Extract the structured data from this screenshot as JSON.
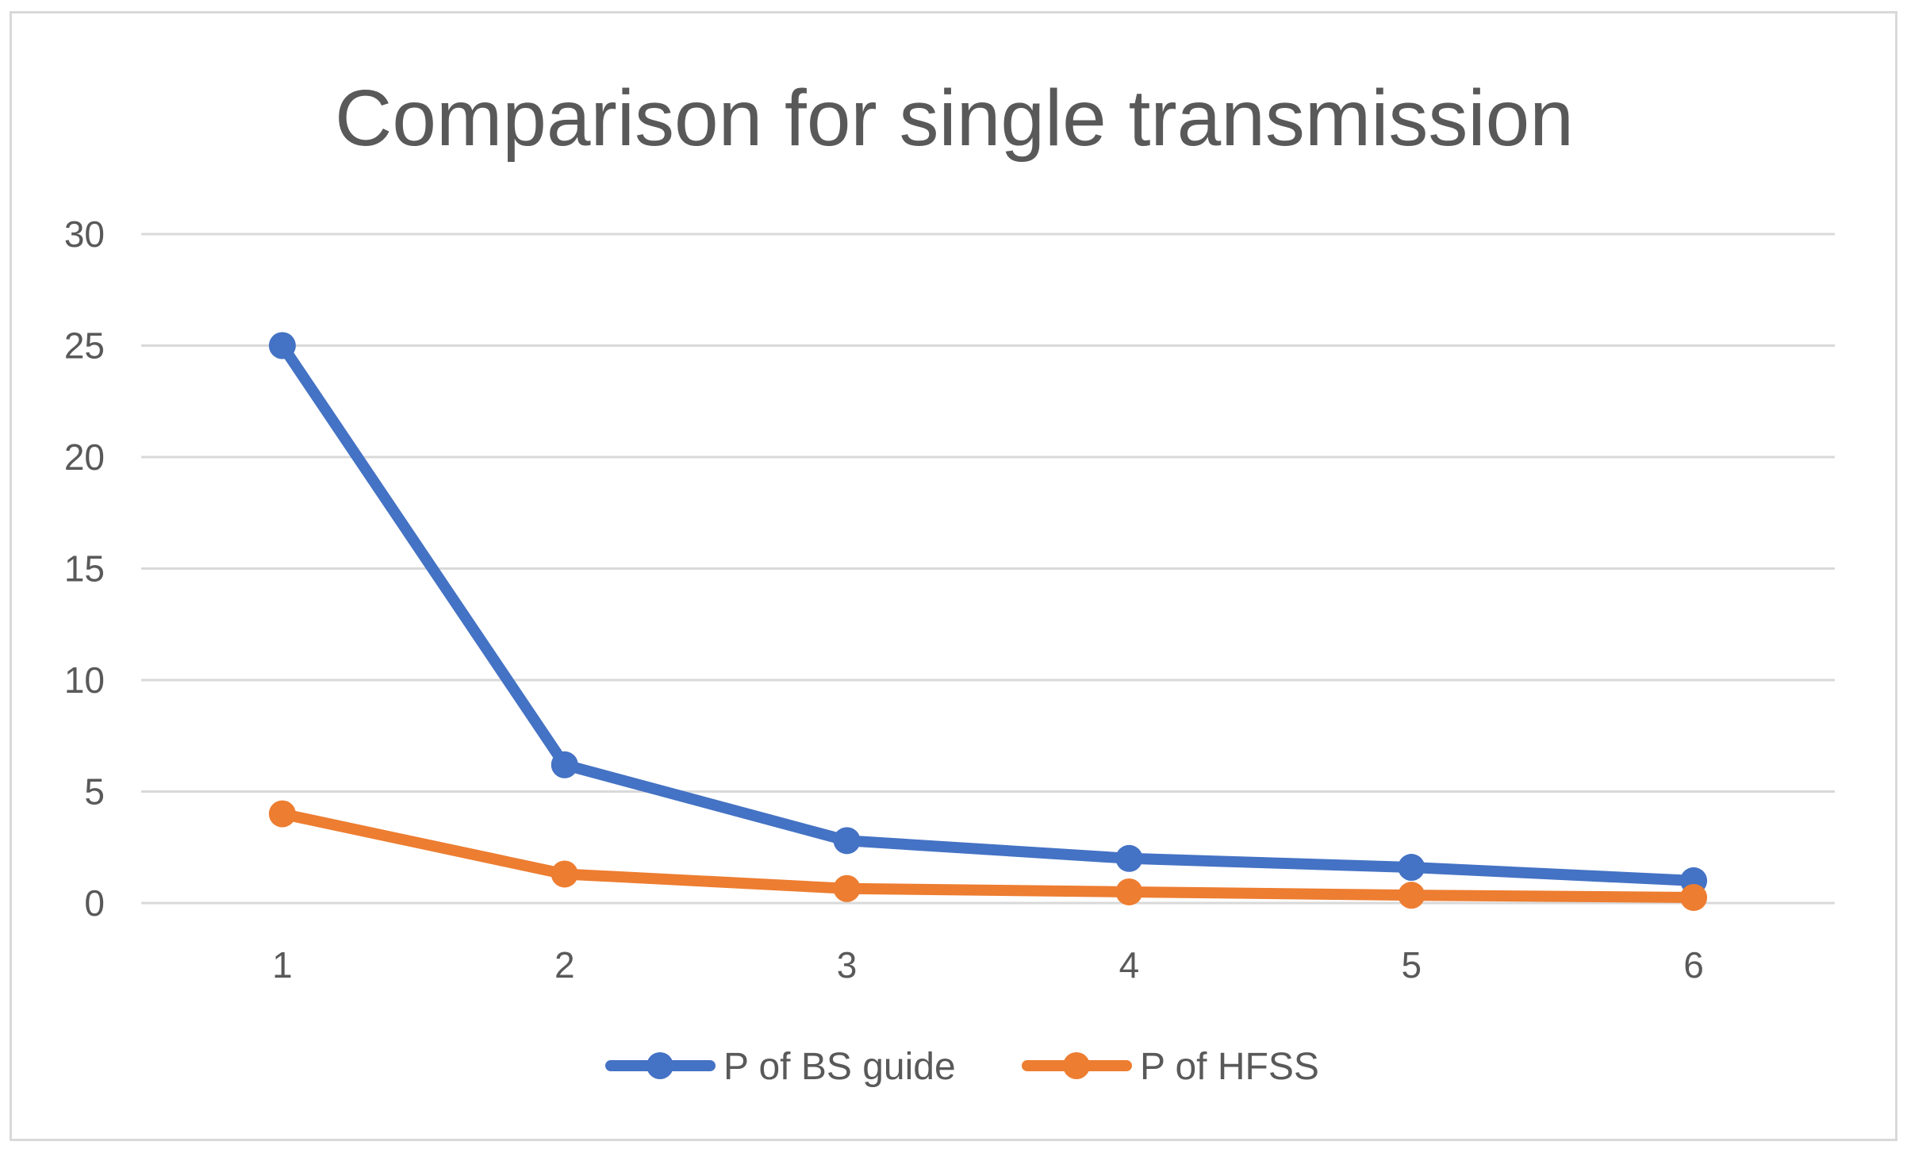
{
  "chart_data": {
    "type": "line",
    "title": "Comparison for single transmission",
    "xlabel": "",
    "ylabel": "",
    "categories": [
      "1",
      "2",
      "3",
      "4",
      "5",
      "6"
    ],
    "ylim": [
      0,
      30
    ],
    "yticks": [
      "0",
      "5",
      "10",
      "15",
      "20",
      "25",
      "30"
    ],
    "grid": true,
    "legend_position": "bottom",
    "series": [
      {
        "name": "P of BS guide",
        "color": "#4472C4",
        "values": [
          25,
          6.2,
          2.8,
          2.0,
          1.6,
          1.0
        ]
      },
      {
        "name": "P of HFSS",
        "color": "#ED7D31",
        "values": [
          4.0,
          1.3,
          0.65,
          0.5,
          0.35,
          0.25
        ]
      }
    ]
  }
}
